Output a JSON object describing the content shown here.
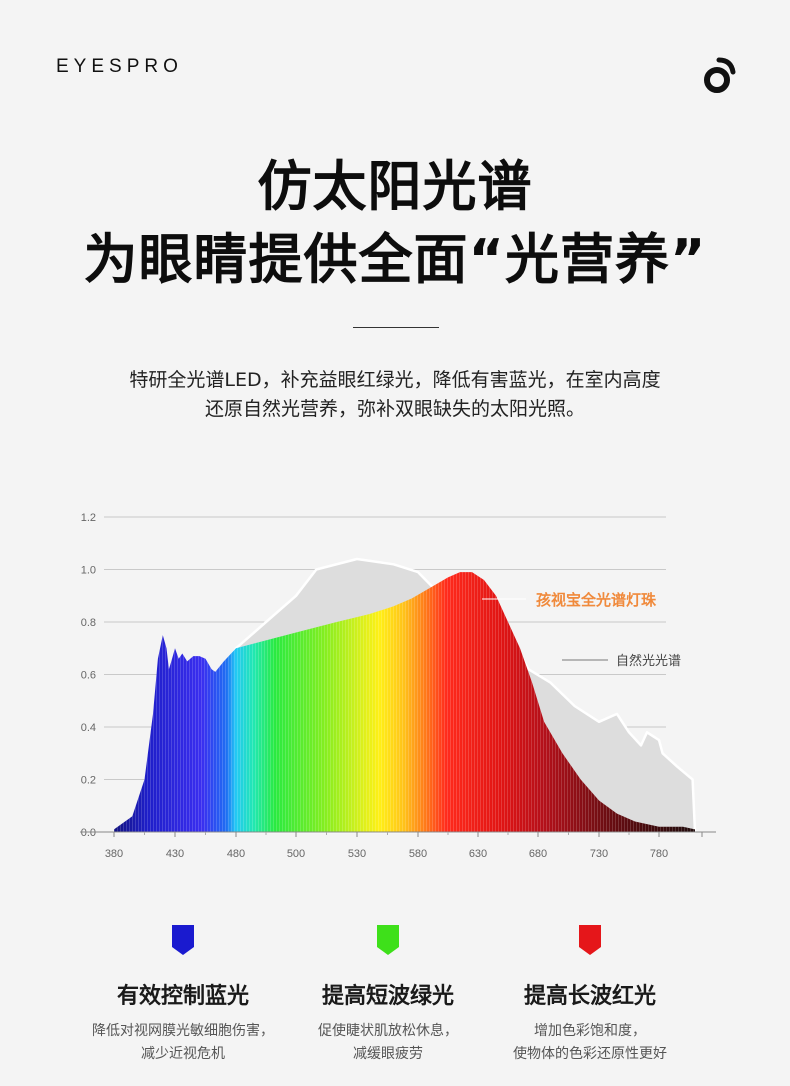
{
  "header": {
    "brand": "EYESPRO",
    "logo_icon": "eyespro-logo-icon"
  },
  "headline": {
    "line1": "仿太阳光谱",
    "line2": "为眼睛提供全面“光营养”"
  },
  "intro": {
    "line1": "特研全光谱LED，补充益眼红绿光，降低有害蓝光，在室内高度",
    "line2": "还原自然光营养，弥补双眼缺失的太阳光照。"
  },
  "chart_data": {
    "type": "area",
    "x_ticks": [
      380,
      430,
      480,
      500,
      530,
      580,
      630,
      680,
      730,
      780
    ],
    "y_ticks": [
      "0.0",
      "0.2",
      "0.4",
      "0.6",
      "0.8",
      "1.0",
      "1.2"
    ],
    "ylim": [
      0,
      1.2
    ],
    "grid": true,
    "series": [
      {
        "name": "孩视宝全光谱灯珠",
        "color": "#f08a3c",
        "points": [
          [
            380,
            0.01
          ],
          [
            395,
            0.06
          ],
          [
            405,
            0.2
          ],
          [
            412,
            0.45
          ],
          [
            416,
            0.66
          ],
          [
            420,
            0.75
          ],
          [
            423,
            0.7
          ],
          [
            425,
            0.62
          ],
          [
            427,
            0.65
          ],
          [
            430,
            0.7
          ],
          [
            433,
            0.66
          ],
          [
            436,
            0.68
          ],
          [
            440,
            0.65
          ],
          [
            445,
            0.67
          ],
          [
            450,
            0.67
          ],
          [
            455,
            0.66
          ],
          [
            460,
            0.62
          ],
          [
            463,
            0.61
          ],
          [
            470,
            0.65
          ],
          [
            480,
            0.7
          ],
          [
            500,
            0.76
          ],
          [
            520,
            0.8
          ],
          [
            540,
            0.83
          ],
          [
            560,
            0.86
          ],
          [
            575,
            0.89
          ],
          [
            590,
            0.93
          ],
          [
            605,
            0.97
          ],
          [
            615,
            0.99
          ],
          [
            625,
            0.99
          ],
          [
            635,
            0.96
          ],
          [
            645,
            0.9
          ],
          [
            655,
            0.8
          ],
          [
            665,
            0.7
          ],
          [
            675,
            0.57
          ],
          [
            685,
            0.42
          ],
          [
            700,
            0.3
          ],
          [
            715,
            0.2
          ],
          [
            730,
            0.12
          ],
          [
            745,
            0.07
          ],
          [
            760,
            0.04
          ],
          [
            780,
            0.02
          ],
          [
            800,
            0.02
          ],
          [
            810,
            0.01
          ]
        ]
      },
      {
        "name": "自然光光谱",
        "color": "#dddddd",
        "points": [
          [
            380,
            0.0
          ],
          [
            420,
            0.03
          ],
          [
            440,
            0.36
          ],
          [
            460,
            0.55
          ],
          [
            480,
            0.7
          ],
          [
            500,
            0.9
          ],
          [
            510,
            1.0
          ],
          [
            530,
            1.04
          ],
          [
            560,
            1.02
          ],
          [
            580,
            0.99
          ],
          [
            595,
            0.92
          ],
          [
            605,
            0.87
          ],
          [
            620,
            0.84
          ],
          [
            640,
            0.79
          ],
          [
            660,
            0.72
          ],
          [
            672,
            0.62
          ],
          [
            690,
            0.57
          ],
          [
            710,
            0.48
          ],
          [
            730,
            0.42
          ],
          [
            745,
            0.45
          ],
          [
            755,
            0.38
          ],
          [
            765,
            0.33
          ],
          [
            770,
            0.38
          ],
          [
            780,
            0.35
          ],
          [
            783,
            0.3
          ],
          [
            795,
            0.25
          ],
          [
            808,
            0.2
          ],
          [
            810,
            0.0
          ]
        ]
      }
    ],
    "annotations": [
      "孩视宝全光谱灯珠",
      "自然光光谱"
    ]
  },
  "features": [
    {
      "title": "有效控制蓝光",
      "desc_line1": "降低对视网膜光敏细胞伤害，",
      "desc_line2": "减少近视危机",
      "color": "#1a1acf",
      "icon": "blue-light-marker-icon"
    },
    {
      "title": "提高短波绿光",
      "desc_line1": "促使睫状肌放松休息，",
      "desc_line2": "减缓眼疲劳",
      "color": "#3ee01a",
      "icon": "green-light-marker-icon"
    },
    {
      "title": "提高长波红光",
      "desc_line1": "增加色彩饱和度，",
      "desc_line2": "使物体的色彩还原性更好",
      "color": "#e5161a",
      "icon": "red-light-marker-icon"
    }
  ]
}
